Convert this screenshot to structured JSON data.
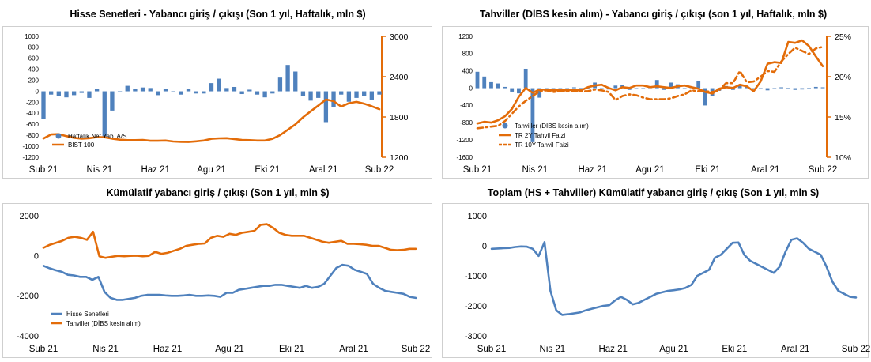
{
  "colors": {
    "blue": "#4f81bd",
    "orange": "#e36c09"
  },
  "chart_data": [
    {
      "id": "c1",
      "type": "bar",
      "title": "Hisse Senetleri - Yabancı giriş / çıkışı (Son 1 yıl, Haftalık, mln $)",
      "x_tick_labels": [
        "Sub 21",
        "Nis 21",
        "Haz 21",
        "Agu 21",
        "Eki 21",
        "Aral 21",
        "Sub 22"
      ],
      "y_left": {
        "ticks": [
          1000,
          800,
          600,
          400,
          200,
          0,
          -200,
          -400,
          -600,
          -800,
          -1000,
          -1200
        ],
        "range": [
          -1200,
          1000
        ]
      },
      "y_right": {
        "ticks": [
          3000,
          2400,
          1800,
          1200
        ],
        "range": [
          1200,
          3000
        ]
      },
      "series": [
        {
          "name": "Haftalık Net Yab. A/S",
          "type": "bar",
          "axis": "left",
          "color": "#4f81bd",
          "values": [
            -500,
            -60,
            -90,
            -110,
            -70,
            -30,
            -120,
            50,
            -850,
            -350,
            -20,
            100,
            50,
            70,
            60,
            -70,
            40,
            -20,
            -60,
            50,
            -40,
            -40,
            150,
            230,
            60,
            80,
            -50,
            30,
            -60,
            -110,
            -40,
            250,
            480,
            360,
            -80,
            -170,
            -120,
            -560,
            -280,
            -60,
            -190,
            -120,
            -90,
            -150,
            -60
          ]
        },
        {
          "name": "BIST 100",
          "type": "line",
          "axis": "right",
          "color": "#e36c09",
          "values": [
            1480,
            1540,
            1545,
            1515,
            1490,
            1478,
            1485,
            1500,
            1498,
            1478,
            1462,
            1455,
            1455,
            1458,
            1446,
            1446,
            1450,
            1435,
            1430,
            1428,
            1438,
            1450,
            1475,
            1482,
            1485,
            1472,
            1458,
            1455,
            1450,
            1450,
            1475,
            1530,
            1610,
            1690,
            1795,
            1885,
            1970,
            2060,
            2035,
            1955,
            2005,
            2025,
            1998,
            1960,
            1915
          ]
        }
      ],
      "legend": "lower-left"
    },
    {
      "id": "c2",
      "type": "bar",
      "title": "Tahviller (DİBS kesin alım) - Yabancı giriş / çıkışı (son 1 yıl, Haftalık, mln $)",
      "x_tick_labels": [
        "Sub 21",
        "Nis 21",
        "Haz 21",
        "Agu 21",
        "Eki 21",
        "Aral 21",
        "Sub 22"
      ],
      "y_left": {
        "ticks": [
          1200,
          800,
          400,
          0,
          -400,
          -800,
          -1200,
          -1600
        ],
        "range": [
          -1600,
          1200
        ]
      },
      "y_right": {
        "ticks": [
          "25%",
          "20%",
          "15%",
          "10%"
        ],
        "range": [
          10,
          25
        ]
      },
      "series": [
        {
          "name": "Tahviller (DİBS kesin alım)",
          "type": "bar",
          "axis": "left",
          "color": "#4f81bd",
          "values": [
            380,
            270,
            140,
            110,
            30,
            -80,
            -120,
            450,
            -1250,
            -220,
            -40,
            -20,
            -30,
            -10,
            20,
            10,
            0,
            130,
            -20,
            -30,
            60,
            70,
            -40,
            -20,
            -10,
            20,
            190,
            -40,
            130,
            90,
            -20,
            30,
            160,
            -400,
            -180,
            -60,
            50,
            -40,
            70,
            30,
            -30,
            -20,
            -50,
            -10,
            20,
            10,
            -40,
            -30,
            10,
            30,
            20
          ]
        },
        {
          "name": "TR 2Y Tahvil Faizi",
          "type": "line",
          "axis": "right",
          "color": "#e36c09",
          "values": [
            14.2,
            14.4,
            14.3,
            14.6,
            15.1,
            16,
            17.5,
            18.6,
            18,
            18.4,
            18.4,
            18.3,
            18.3,
            18.3,
            18.4,
            18.3,
            18.7,
            18.9,
            19,
            18.6,
            18.3,
            18.7,
            18.6,
            18.9,
            18.9,
            18.7,
            18.8,
            18.7,
            18.6,
            18.8,
            18.9,
            18.7,
            18.5,
            18.1,
            17.9,
            18.5,
            18.7,
            18.6,
            19,
            18.8,
            18.2,
            19.4,
            21.6,
            21.8,
            21.7,
            24.3,
            24.2,
            24.5,
            23.8,
            22.5,
            21.3
          ]
        },
        {
          "name": "TR 10Y Tahvil Faizi",
          "type": "line",
          "axis": "right",
          "color": "#e36c09",
          "dashed": true,
          "values": [
            13.6,
            13.7,
            13.8,
            13.9,
            14.5,
            15.4,
            16.3,
            17,
            17.6,
            18.2,
            18.3,
            18.1,
            18.2,
            18.2,
            18.2,
            18.2,
            18.2,
            18.4,
            18.3,
            18.1,
            17.1,
            17.6,
            17.8,
            17.7,
            17.4,
            17.2,
            17.2,
            17.2,
            17.3,
            17.6,
            17.8,
            18.3,
            18.2,
            18.2,
            18.1,
            18.3,
            19.2,
            19.2,
            20.7,
            19.3,
            19.4,
            20,
            20.7,
            20.6,
            21.9,
            22.8,
            23.6,
            23.2,
            22.8,
            23.5,
            23.7
          ]
        }
      ],
      "legend": "lower-left"
    },
    {
      "id": "c3",
      "type": "line",
      "title": "Kümülatif yabancı giriş / çıkışı (Son 1 yıl, mln $)",
      "x_tick_labels": [
        "Sub 21",
        "Nis 21",
        "Haz 21",
        "Agu 21",
        "Eki 21",
        "Aral 21",
        "Sub 22"
      ],
      "y_left": {
        "ticks": [
          2000,
          0,
          -2000,
          -4000
        ],
        "range": [
          -4000,
          2000
        ]
      },
      "series": [
        {
          "name": "Hisse Senetleri",
          "type": "line",
          "color": "#4f81bd",
          "values": [
            -500,
            -620,
            -720,
            -800,
            -950,
            -980,
            -1050,
            -1050,
            -1200,
            -1050,
            -1800,
            -2100,
            -2200,
            -2200,
            -2150,
            -2100,
            -2000,
            -1950,
            -1950,
            -1950,
            -1980,
            -2000,
            -2000,
            -1980,
            -1950,
            -2000,
            -2000,
            -1980,
            -2000,
            -2050,
            -1850,
            -1850,
            -1700,
            -1650,
            -1600,
            -1550,
            -1500,
            -1500,
            -1450,
            -1450,
            -1500,
            -1550,
            -1600,
            -1500,
            -1600,
            -1550,
            -1400,
            -1000,
            -600,
            -450,
            -500,
            -700,
            -800,
            -900,
            -1400,
            -1600,
            -1750,
            -1800,
            -1850,
            -1900,
            -2050,
            -2100
          ]
        },
        {
          "name": "Tahviller (DİBS kesin alım)",
          "type": "line",
          "color": "#e36c09",
          "values": [
            400,
            550,
            650,
            750,
            900,
            950,
            900,
            800,
            1200,
            -20,
            -100,
            -50,
            0,
            -20,
            0,
            10,
            -20,
            0,
            200,
            100,
            150,
            250,
            350,
            500,
            550,
            600,
            620,
            900,
            1000,
            950,
            1100,
            1050,
            1150,
            1200,
            1250,
            1550,
            1580,
            1400,
            1150,
            1050,
            1000,
            1000,
            1000,
            900,
            800,
            700,
            650,
            700,
            750,
            600,
            600,
            580,
            550,
            500,
            500,
            400,
            300,
            280,
            300,
            350,
            350
          ]
        }
      ],
      "legend": "lower-left"
    },
    {
      "id": "c4",
      "type": "line",
      "title": "Toplam (HS + Tahviller) Kümülatif yabancı giriş / çıkış (Son 1 yıl, mln $)",
      "x_tick_labels": [
        "Sub 21",
        "Nis 21",
        "Haz 21",
        "Agu 21",
        "Eki 21",
        "Aral 21",
        "Sub 22"
      ],
      "y_left": {
        "ticks": [
          1000,
          0,
          -1000,
          -2000,
          -3000
        ],
        "range": [
          -3000,
          1000
        ]
      },
      "series": [
        {
          "name": "Toplam",
          "type": "line",
          "color": "#4f81bd",
          "values": [
            -100,
            -90,
            -80,
            -70,
            -40,
            -20,
            -30,
            -100,
            -340,
            120,
            -1500,
            -2150,
            -2300,
            -2280,
            -2250,
            -2220,
            -2150,
            -2100,
            -2050,
            -2000,
            -1980,
            -1820,
            -1700,
            -1800,
            -1950,
            -1900,
            -1800,
            -1700,
            -1600,
            -1550,
            -1500,
            -1480,
            -1450,
            -1400,
            -1300,
            -1000,
            -900,
            -800,
            -400,
            -300,
            -100,
            100,
            110,
            -300,
            -500,
            -600,
            -700,
            -800,
            -900,
            -700,
            -200,
            200,
            250,
            100,
            -100,
            -200,
            -300,
            -700,
            -1200,
            -1500,
            -1600,
            -1700,
            -1720
          ]
        }
      ]
    }
  ],
  "legends": {
    "c1": [
      "Haftalık Net Yab. A/S",
      "BIST 100"
    ],
    "c2": [
      "Tahviller (DİBS kesin alım)",
      "TR 2Y Tahvil Faizi",
      "TR 10Y Tahvil Faizi"
    ],
    "c3": [
      "Hisse Senetleri",
      "Tahviller (DİBS kesin alım)"
    ]
  }
}
